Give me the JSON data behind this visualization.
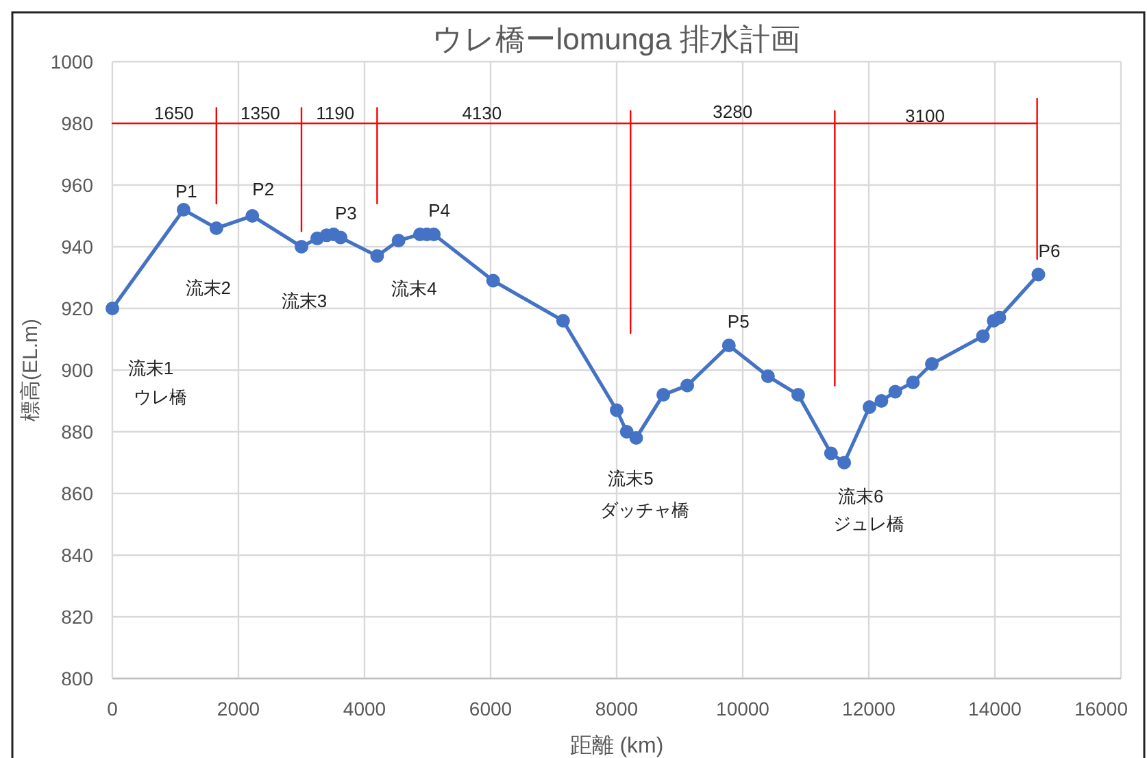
{
  "chart_data": {
    "type": "line",
    "title": "ウレ橋ーlomunga 排水計画",
    "xlabel": "距離 (km)",
    "ylabel": "標高(EL.m)",
    "xlim": [
      0,
      16000
    ],
    "ylim": [
      800,
      1000
    ],
    "xticks": [
      0,
      2000,
      4000,
      6000,
      8000,
      10000,
      12000,
      14000,
      16000
    ],
    "yticks": [
      800,
      820,
      840,
      860,
      880,
      900,
      920,
      940,
      960,
      980,
      1000
    ],
    "grid": true,
    "marker": "circle",
    "line_style": "solid",
    "series": [
      {
        "color": "#4472c4",
        "x": [
          0,
          1130,
          1650,
          2220,
          3000,
          3250,
          3400,
          3510,
          3620,
          4200,
          4540,
          4880,
          4990,
          5100,
          6040,
          7150,
          8000,
          8160,
          8310,
          8740,
          9120,
          9780,
          10400,
          10880,
          11400,
          11610,
          12010,
          12200,
          12420,
          12700,
          13000,
          13810,
          13980,
          14070,
          14690
        ],
        "values": [
          920,
          952,
          946,
          950,
          940,
          942.7,
          943.7,
          944,
          943,
          937,
          942,
          944,
          944,
          944,
          929,
          916,
          887,
          880,
          878,
          892,
          895,
          908,
          898,
          892,
          873,
          870,
          888,
          890,
          893,
          896,
          902,
          911,
          916,
          917,
          931
        ]
      },
      {
        "color": "#ff0000",
        "marker": "none",
        "x": [
          0,
          14670
        ],
        "values": [
          980,
          980
        ]
      },
      {
        "color": "#ff0000",
        "marker": "none",
        "x": [
          1650,
          1650
        ],
        "values": [
          985,
          954
        ]
      },
      {
        "color": "#ff0000",
        "marker": "none",
        "x": [
          3000,
          3000
        ],
        "values": [
          985,
          945
        ]
      },
      {
        "color": "#ff0000",
        "marker": "none",
        "x": [
          4200,
          4200
        ],
        "values": [
          985,
          954
        ]
      },
      {
        "color": "#ff0000",
        "marker": "none",
        "x": [
          8220,
          8220
        ],
        "values": [
          984,
          912
        ]
      },
      {
        "color": "#ff0000",
        "marker": "none",
        "x": [
          11460,
          11460
        ],
        "values": [
          984,
          895
        ]
      },
      {
        "color": "#ff0000",
        "marker": "none",
        "x": [
          14670,
          14670
        ],
        "values": [
          988,
          936
        ]
      }
    ],
    "annotations": [
      {
        "text": "P1",
        "x": 1130,
        "y": 952
      },
      {
        "text": "P2",
        "x": 2220,
        "y": 950
      },
      {
        "text": "P3",
        "x": 3510,
        "y": 944
      },
      {
        "text": "P4",
        "x": 4990,
        "y": 944
      },
      {
        "text": "P5",
        "x": 9780,
        "y": 908
      },
      {
        "text": "P6",
        "x": 14690,
        "y": 931
      },
      {
        "text": "流末1",
        "x": 0,
        "y": 920
      },
      "ウレ橋",
      {
        "text": "流末2",
        "x": 1650,
        "y": 946
      },
      {
        "text": "流末3",
        "x": 3000,
        "y": 940
      },
      {
        "text": "流末4",
        "x": 4200,
        "y": 937
      },
      {
        "text": "流末5",
        "x": 8310,
        "y": 878
      },
      "ダッチャ橋",
      {
        "text": "流末6",
        "x": 11610,
        "y": 870
      },
      {
        "text": "ジュレ橋",
        "x": 11610,
        "y": 870
      },
      {
        "text": "1650",
        "x": 825,
        "y": 980
      },
      {
        "text": "1350",
        "x": 2325,
        "y": 980
      },
      {
        "text": "1190",
        "x": 3600,
        "y": 980
      },
      {
        "text": "4130",
        "x": 6210,
        "y": 980
      },
      {
        "text": "3280",
        "x": 9840,
        "y": 980
      },
      {
        "text": "3100",
        "x": 13065,
        "y": 980
      }
    ]
  }
}
